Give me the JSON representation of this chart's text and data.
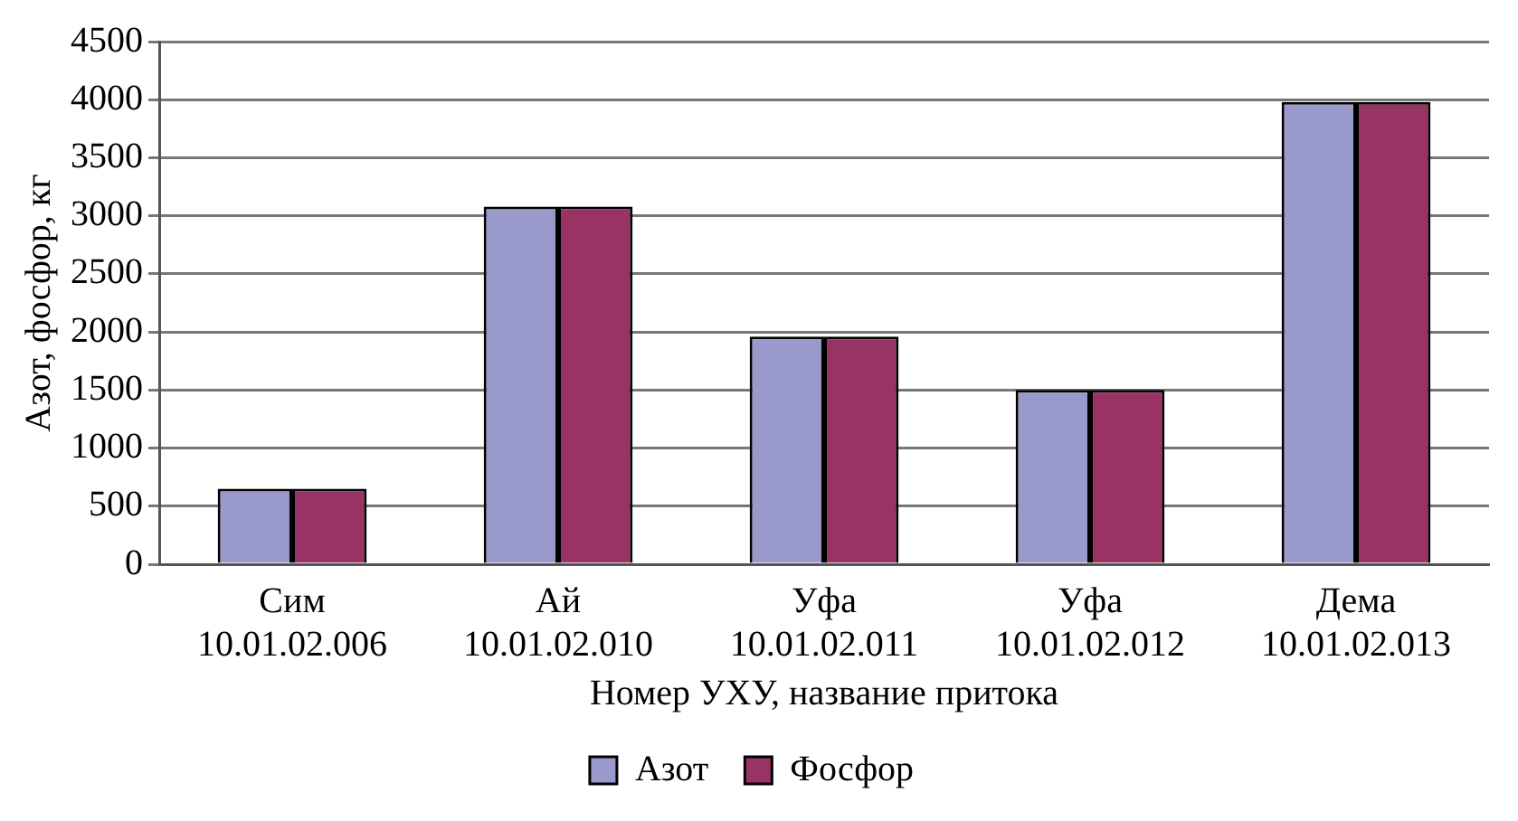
{
  "chart_data": {
    "type": "bar",
    "xlabel": "Номер УХУ, название притока",
    "ylabel": "Азот, фосфор, кг",
    "categories": [
      "Сим\n10.01.02.006",
      "Ай\n10.01.02.010",
      "Уфа\n10.01.02.011",
      "Уфа\n10.01.02.012",
      "Дема\n10.01.02.013"
    ],
    "series": [
      {
        "name": "Азот",
        "color": "#9999cc",
        "values": [
          650,
          3080,
          1960,
          1500,
          3980
        ]
      },
      {
        "name": "Фосфор",
        "color": "#993366",
        "values": [
          650,
          3080,
          1960,
          1500,
          3980
        ]
      }
    ],
    "ylim": [
      0,
      4500
    ],
    "yticks": [
      0,
      500,
      1000,
      1500,
      2000,
      2500,
      3000,
      3500,
      4000,
      4500
    ],
    "grid": "y",
    "legend": "bottom"
  }
}
